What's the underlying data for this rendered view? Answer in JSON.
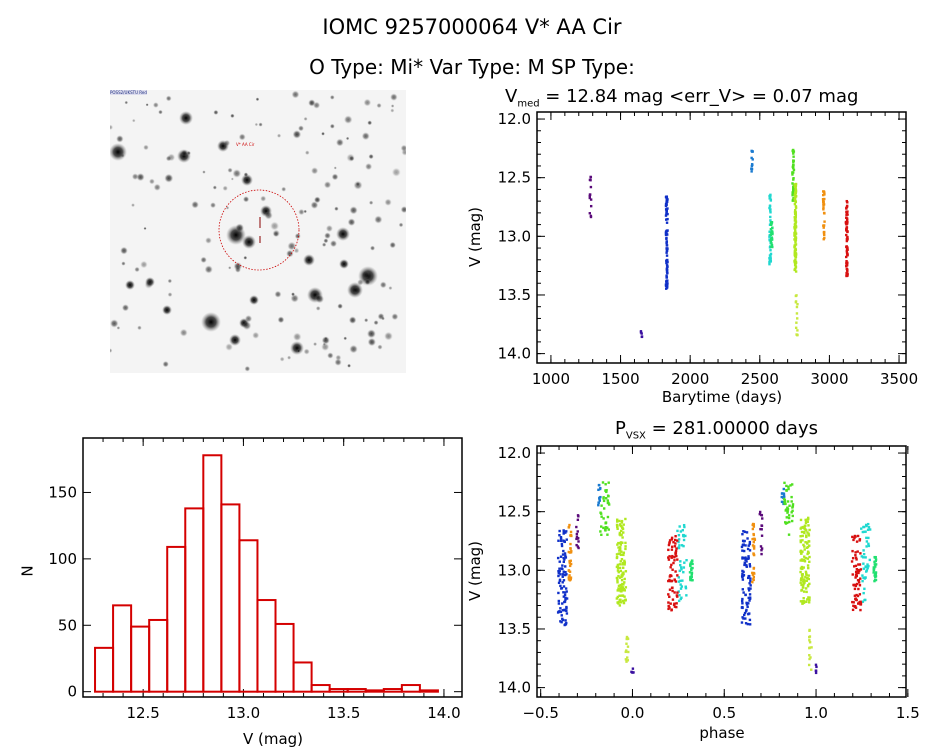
{
  "header": {
    "title": "IOMC 9257000064    V* AA Cir",
    "subtitle": "O Type: Mi*  Var Type: M  SP Type:"
  },
  "colors": {
    "hist": "#d40000",
    "circle": "#cc0000"
  },
  "chart_data": [
    {
      "type": "image",
      "name": "finding-chart",
      "labels": [
        "POSS2/UKSTU Red",
        "V* AA Cir"
      ]
    },
    {
      "type": "scatter",
      "name": "light-curve",
      "title_main": "V",
      "title_sub": "med",
      "title_rest": " = 12.84 mag <err_V> = 0.07 mag",
      "xlabel": "Barytime (days)",
      "ylabel": "V (mag)",
      "xlim": [
        1000,
        3500
      ],
      "ylim": [
        14.0,
        12.0
      ],
      "xticks": [
        "1000",
        "1500",
        "2000",
        "2500",
        "3000",
        "3500"
      ],
      "yticks": [
        "12.0",
        "12.5",
        "13.0",
        "13.5",
        "14.0"
      ],
      "series": [
        {
          "t": 1285,
          "vmin": 12.47,
          "vmax": 12.87,
          "phase": -0.3,
          "color": "#5a0a7a",
          "n": 14
        },
        {
          "t": 1650,
          "vmin": 13.8,
          "vmax": 13.88,
          "phase": 0.0,
          "color": "#3a10a0",
          "n": 5
        },
        {
          "t": 1832,
          "vmin": 12.66,
          "vmax": 13.47,
          "phase": -0.38,
          "color": "#1030c8",
          "n": 90
        },
        {
          "t": 2445,
          "vmin": 12.27,
          "vmax": 12.45,
          "phase": -0.18,
          "color": "#1a7ad0",
          "n": 12
        },
        {
          "t": 2575,
          "vmin": 12.6,
          "vmax": 13.27,
          "phase": 0.27,
          "color": "#20d8d0",
          "n": 45
        },
        {
          "t": 2585,
          "vmin": 12.88,
          "vmax": 13.1,
          "phase": 0.32,
          "color": "#20e070",
          "n": 25
        },
        {
          "t": 2740,
          "vmin": 12.25,
          "vmax": 12.7,
          "phase": -0.15,
          "color": "#50e020",
          "n": 40
        },
        {
          "t": 2755,
          "vmin": 12.55,
          "vmax": 13.3,
          "phase": -0.06,
          "color": "#b0e820",
          "n": 120
        },
        {
          "t": 2765,
          "vmin": 13.48,
          "vmax": 13.85,
          "phase": -0.03,
          "color": "#c8e840",
          "n": 14
        },
        {
          "t": 2960,
          "vmin": 12.6,
          "vmax": 13.12,
          "phase": -0.34,
          "color": "#f09010",
          "n": 30
        },
        {
          "t": 3125,
          "vmin": 12.7,
          "vmax": 13.35,
          "phase": 0.22,
          "color": "#d81010",
          "n": 70
        }
      ]
    },
    {
      "type": "bar",
      "name": "histogram",
      "xlabel": "V (mag)",
      "ylabel": "N",
      "xlim": [
        12.2,
        14.05
      ],
      "ylim": [
        0,
        185
      ],
      "xticks": [
        "12.5",
        "13.0",
        "13.5",
        "14.0"
      ],
      "yticks": [
        "0",
        "50",
        "100",
        "150"
      ],
      "bin_start": 12.26,
      "bin_width": 0.09,
      "values": [
        33,
        65,
        49,
        54,
        109,
        138,
        178,
        141,
        114,
        69,
        51,
        22,
        5,
        2,
        2,
        1,
        2,
        5,
        1
      ]
    },
    {
      "type": "scatter",
      "name": "phase-curve",
      "title_main": "P",
      "title_sub": "VSX",
      "title_rest": " = 281.00000 days",
      "xlabel": "phase",
      "ylabel": "V (mag)",
      "xlim": [
        -0.5,
        1.5
      ],
      "ylim": [
        14.0,
        12.0
      ],
      "xticks": [
        "−0.5",
        "0.0",
        "0.5",
        "1.0",
        "1.5"
      ],
      "yticks": [
        "12.0",
        "12.5",
        "13.0",
        "13.5",
        "14.0"
      ]
    }
  ]
}
